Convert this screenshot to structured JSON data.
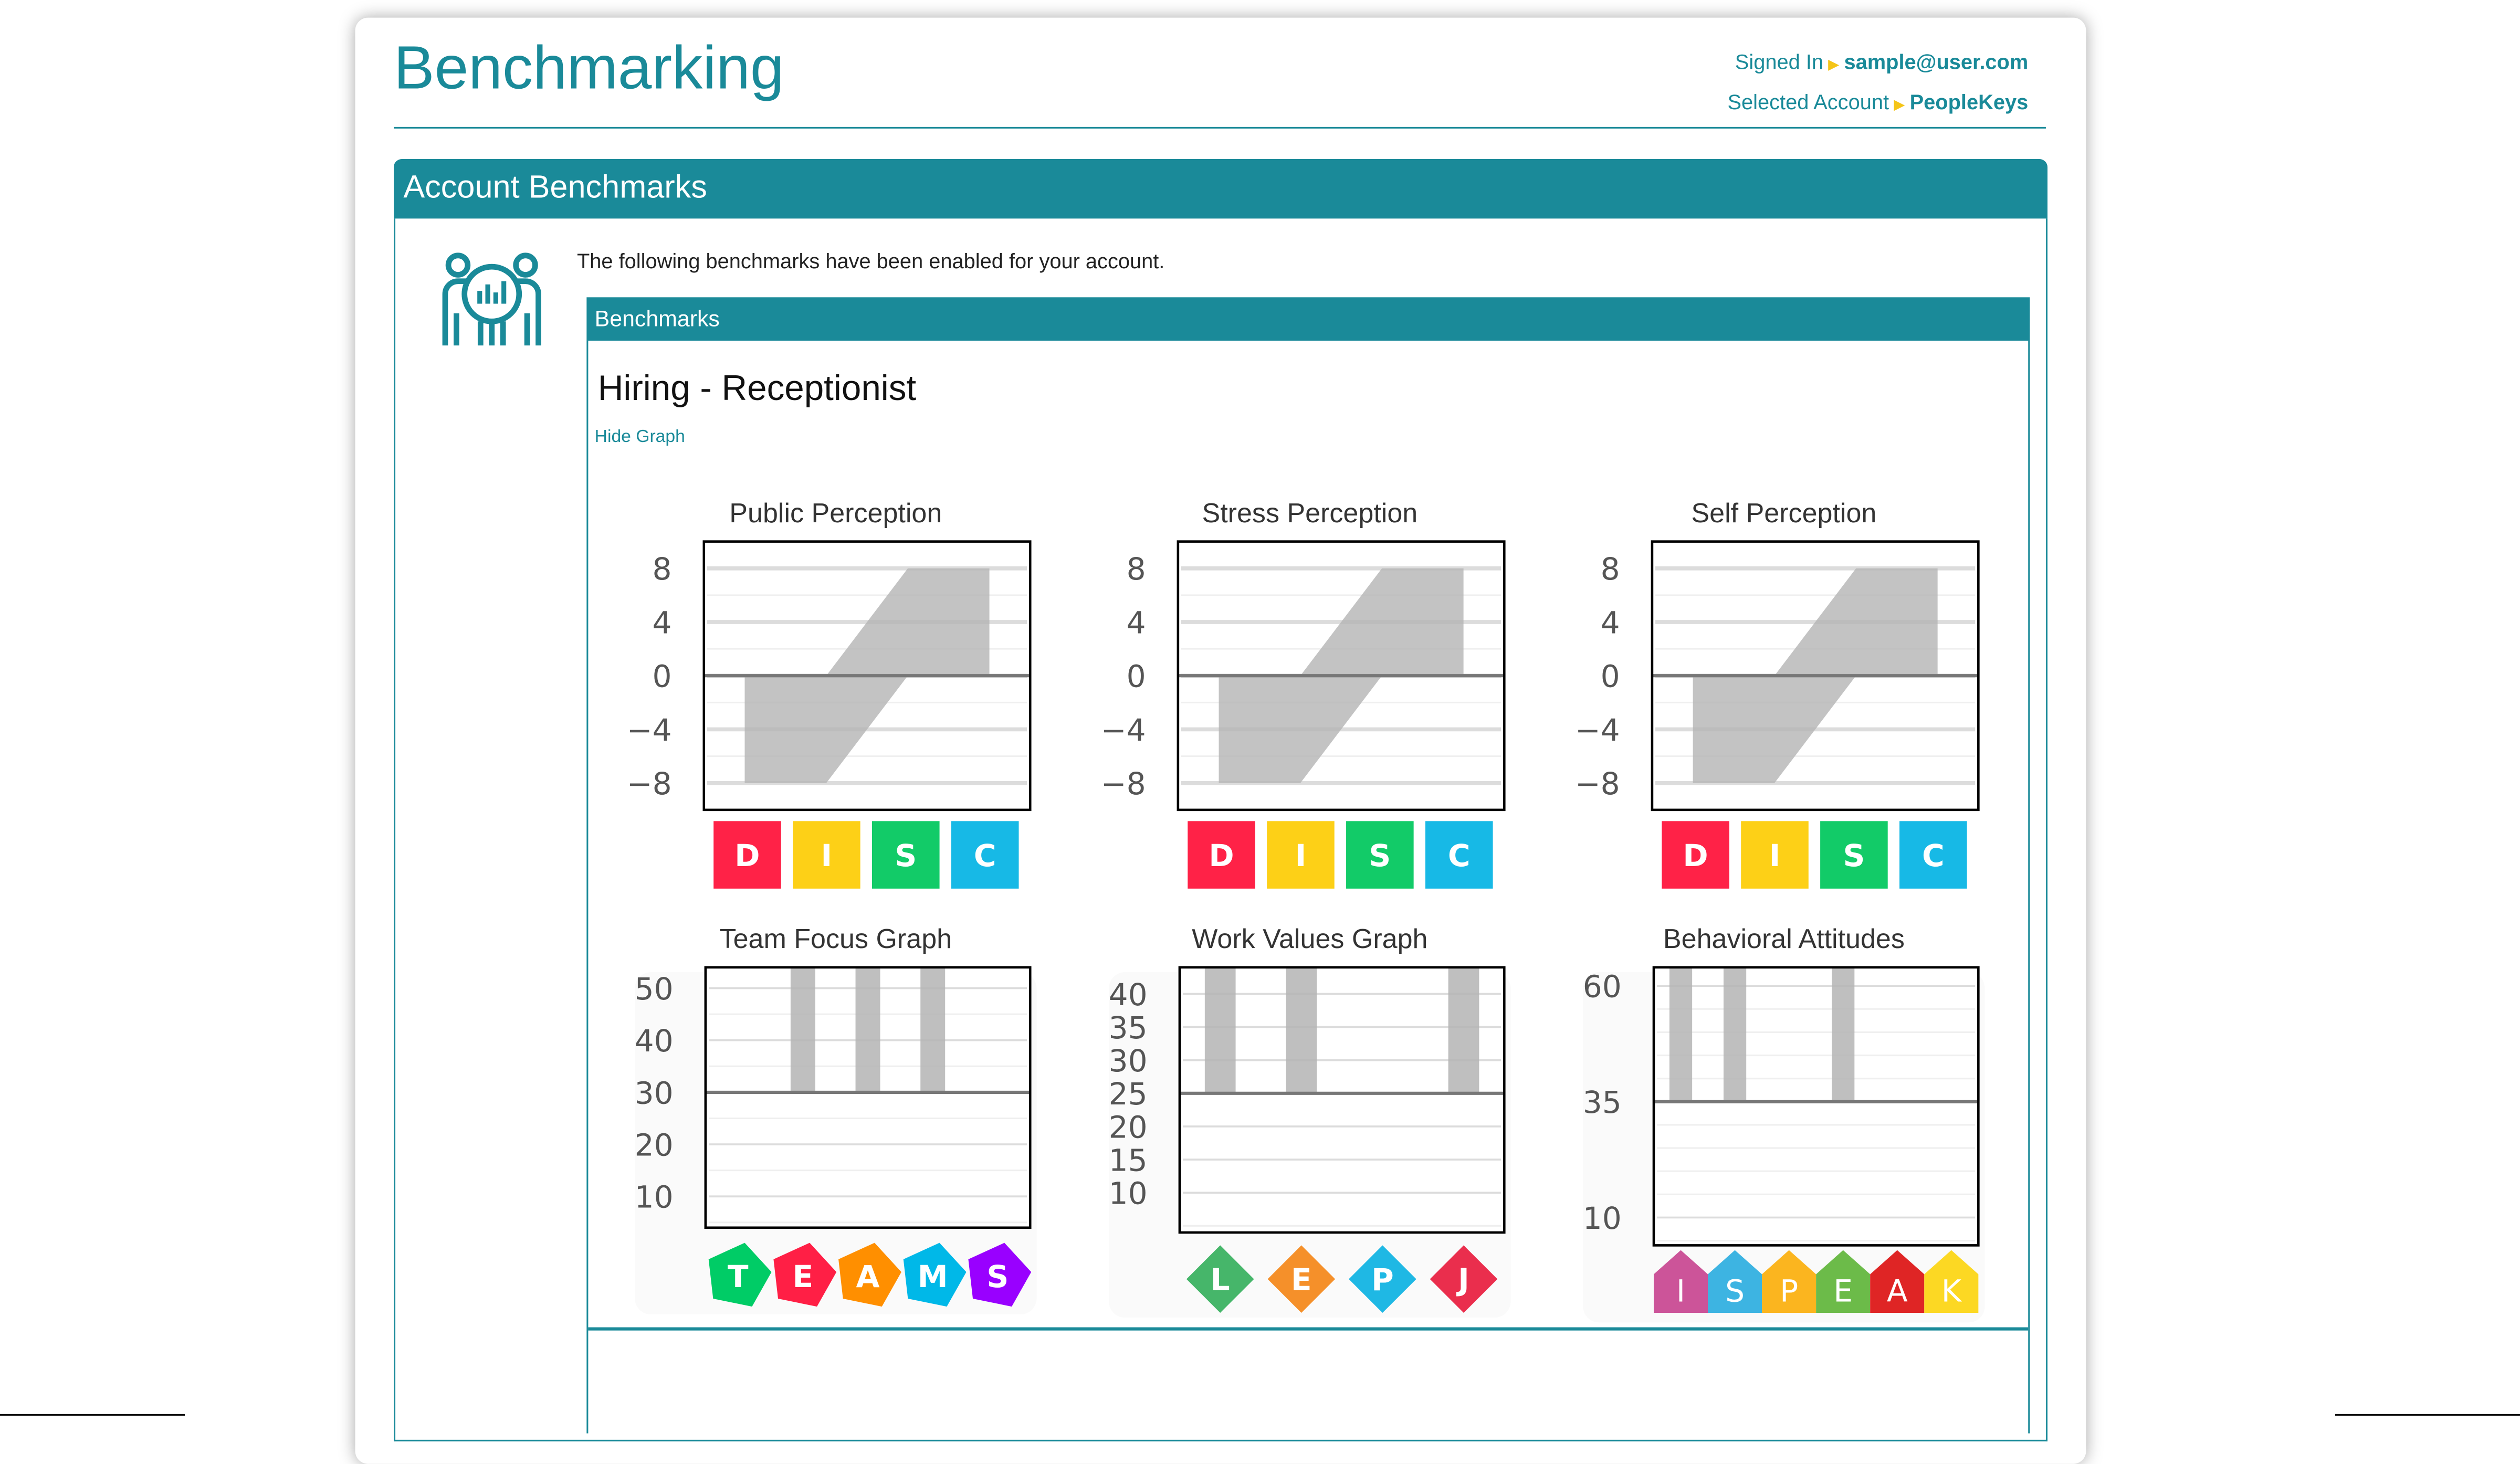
{
  "header": {
    "title": "Benchmarking",
    "signed_in_label": "Signed In",
    "signed_in_value": "sample@user.com",
    "account_label": "Selected Account",
    "account_value": "PeopleKeys"
  },
  "panel": {
    "title": "Account Benchmarks",
    "icon": "team-analytics-icon",
    "description": "The following benchmarks have been enabled for your account.",
    "benchmarks_header": "Benchmarks",
    "benchmark_name": "Hiring - Receptionist",
    "hide_graph_link": "Hide Graph"
  },
  "colors": {
    "accent": "#1a8a99",
    "band": "#c4c4c4"
  },
  "chart_data": [
    {
      "type": "area-range",
      "title": "Public Perception",
      "categories": [
        "D",
        "I",
        "S",
        "C"
      ],
      "low": [
        -8,
        -8,
        0,
        0
      ],
      "high": [
        0,
        0,
        8,
        8
      ],
      "yticks": [
        8,
        4,
        0,
        -4,
        -8
      ],
      "ylim": [
        -10,
        10
      ],
      "baseline": 0,
      "badge": "square",
      "badge_colors": [
        "#ff2247",
        "#fdd017",
        "#12cb68",
        "#17b9e6"
      ]
    },
    {
      "type": "area-range",
      "title": "Stress Perception",
      "categories": [
        "D",
        "I",
        "S",
        "C"
      ],
      "low": [
        -8,
        -8,
        0,
        0
      ],
      "high": [
        0,
        0,
        8,
        8
      ],
      "yticks": [
        8,
        4,
        0,
        -4,
        -8
      ],
      "ylim": [
        -10,
        10
      ],
      "baseline": 0,
      "badge": "square",
      "badge_colors": [
        "#ff2247",
        "#fdd017",
        "#12cb68",
        "#17b9e6"
      ]
    },
    {
      "type": "area-range",
      "title": "Self Perception",
      "categories": [
        "D",
        "I",
        "S",
        "C"
      ],
      "low": [
        -8,
        -8,
        0,
        0
      ],
      "high": [
        0,
        0,
        8,
        8
      ],
      "yticks": [
        8,
        4,
        0,
        -4,
        -8
      ],
      "ylim": [
        -10,
        10
      ],
      "baseline": 0,
      "badge": "square",
      "badge_colors": [
        "#ff2247",
        "#fdd017",
        "#12cb68",
        "#17b9e6"
      ]
    },
    {
      "type": "bar",
      "title": "Team Focus Graph",
      "categories": [
        "T",
        "E",
        "A",
        "M",
        "S"
      ],
      "ranges": [
        null,
        [
          30,
          54
        ],
        [
          30,
          54
        ],
        [
          30,
          54
        ],
        null
      ],
      "yticks": [
        50,
        40,
        30,
        20,
        10
      ],
      "ylim": [
        4,
        54
      ],
      "baseline": 30,
      "badge": "pentagon",
      "badge_colors": [
        "#00cc66",
        "#ff1f45",
        "#ff8f00",
        "#00b8e8",
        "#9900ff"
      ]
    },
    {
      "type": "bar",
      "title": "Work Values Graph",
      "categories": [
        "L",
        "E",
        "P",
        "J"
      ],
      "ranges": [
        [
          25,
          44
        ],
        [
          25,
          44
        ],
        null,
        [
          25,
          44
        ]
      ],
      "yticks": [
        40,
        35,
        30,
        25,
        20,
        15,
        10
      ],
      "ylim": [
        4,
        44
      ],
      "baseline": 25,
      "badge": "diamond",
      "badge_colors": [
        "#46b66a",
        "#f5902a",
        "#1fb8e4",
        "#ea2e4d"
      ]
    },
    {
      "type": "bar",
      "title": "Behavioral Attitudes",
      "categories": [
        "I",
        "S",
        "P",
        "E",
        "A",
        "K"
      ],
      "ranges": [
        [
          35,
          64
        ],
        [
          35,
          64
        ],
        null,
        [
          35,
          64
        ],
        null,
        null
      ],
      "yticks": [
        60,
        35,
        10
      ],
      "ylim": [
        4,
        64
      ],
      "baseline": 35,
      "badge": "house",
      "badge_colors": [
        "#cc5499",
        "#3db4e2",
        "#fbb51f",
        "#6cbb49",
        "#df2525",
        "#fcd823"
      ]
    }
  ]
}
